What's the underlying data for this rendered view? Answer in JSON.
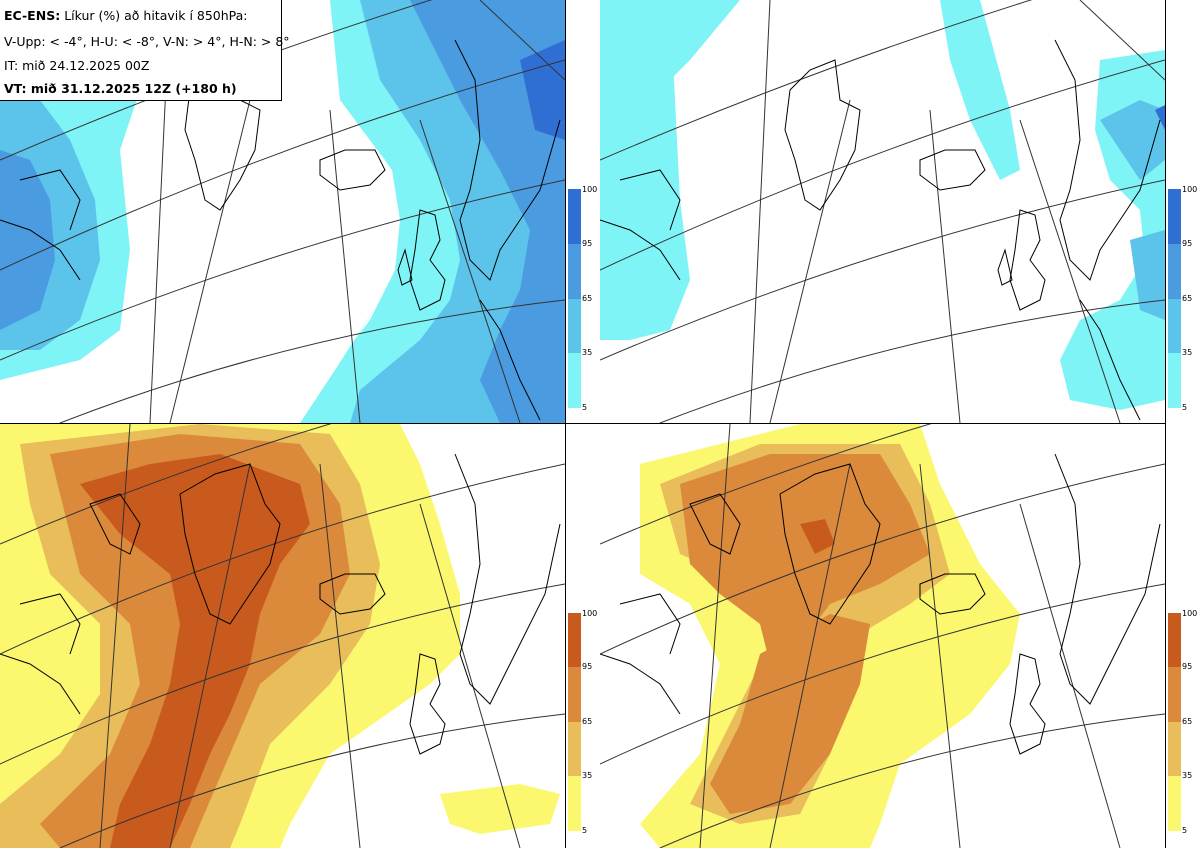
{
  "info": {
    "title_bold": "EC-ENS:",
    "title_rest": "Líkur (%) að hitavik í 850hPa:",
    "thresholds": "V-Upp: < -4°, H-U: < -8°, V-N: > 4°, H-N: > 8°",
    "initial_time": "IT: mið 24.12.2025 00Z",
    "valid_time": "VT: mið 31.12.2025 12Z (+180 h)"
  },
  "panels": [
    {
      "id": "cold-4",
      "threshold": "< -4°",
      "palette": "blue"
    },
    {
      "id": "cold-8",
      "threshold": "< -8°",
      "palette": "blue"
    },
    {
      "id": "warm-4",
      "threshold": "> 4°",
      "palette": "warm"
    },
    {
      "id": "warm-8",
      "threshold": "> 8°",
      "palette": "warm"
    }
  ],
  "colorbars": {
    "levels": [
      "100",
      "95",
      "65",
      "35",
      "5"
    ],
    "blue_colors": [
      "#2f6fd4",
      "#4a9be0",
      "#5cc3ea",
      "#7ef4f6"
    ],
    "warm_colors": [
      "#c95a1e",
      "#db8a3c",
      "#e8bd5a",
      "#fbf86f"
    ]
  },
  "colors": {
    "coast": "#000000",
    "grid": "#333333"
  }
}
